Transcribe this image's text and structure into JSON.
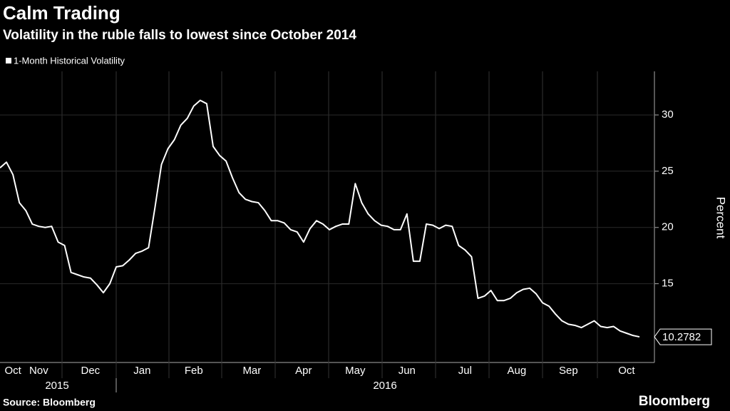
{
  "chart_data": {
    "type": "line",
    "title": "Calm Trading",
    "subtitle": "Volatility in the ruble falls to lowest since October 2014",
    "y_label": "Percent",
    "source": "Source: Bloomberg",
    "brand": "Bloomberg",
    "year_labels": [
      "2015",
      "2016"
    ],
    "categories": [
      null,
      null,
      "Oct",
      null,
      null,
      null,
      "Nov",
      null,
      null,
      null,
      null,
      null,
      null,
      null,
      "Dec",
      null,
      null,
      null,
      null,
      null,
      null,
      null,
      "Jan",
      null,
      null,
      null,
      null,
      null,
      null,
      null,
      "Feb",
      null,
      null,
      null,
      null,
      null,
      null,
      null,
      null,
      "Mar",
      null,
      null,
      null,
      null,
      null,
      null,
      null,
      "Apr",
      null,
      null,
      null,
      null,
      null,
      null,
      null,
      "May",
      null,
      null,
      null,
      null,
      null,
      null,
      null,
      "Jun",
      null,
      null,
      null,
      null,
      null,
      null,
      null,
      null,
      "Jul",
      null,
      null,
      null,
      null,
      null,
      null,
      null,
      "Aug",
      null,
      null,
      null,
      null,
      null,
      null,
      null,
      "Sep",
      null,
      null,
      null,
      null,
      null,
      null,
      null,
      null,
      "Oct",
      null,
      null
    ],
    "series": [
      {
        "name": "1-Month Historical Volatility",
        "color": "#ffffff",
        "values": [
          25.3,
          25.8,
          24.7,
          22.2,
          21.5,
          20.3,
          20.1,
          20.0,
          20.1,
          18.7,
          18.4,
          16.0,
          15.8,
          15.6,
          15.5,
          14.9,
          14.2,
          15.0,
          16.5,
          16.6,
          17.1,
          17.7,
          17.9,
          18.2,
          21.8,
          25.6,
          27.0,
          27.8,
          29.1,
          29.7,
          30.8,
          31.3,
          31.0,
          27.2,
          26.4,
          25.9,
          24.4,
          23.1,
          22.5,
          22.3,
          22.2,
          21.5,
          20.6,
          20.6,
          20.4,
          19.8,
          19.6,
          18.7,
          19.9,
          20.6,
          20.3,
          19.8,
          20.1,
          20.3,
          20.3,
          23.9,
          22.2,
          21.2,
          20.6,
          20.2,
          20.1,
          19.8,
          19.8,
          21.2,
          17.0,
          17.0,
          20.3,
          20.2,
          19.9,
          20.2,
          20.1,
          18.4,
          18.0,
          17.4,
          13.7,
          13.9,
          14.4,
          13.5,
          13.5,
          13.7,
          14.2,
          14.5,
          14.6,
          14.1,
          13.3,
          13.0,
          12.3,
          11.7,
          11.4,
          11.3,
          11.1,
          11.4,
          11.7,
          11.2,
          11.1,
          11.2,
          10.8,
          10.6,
          10.4,
          10.2782
        ]
      }
    ],
    "ylim": [
      8,
      34
    ],
    "yticks": [
      15,
      20,
      25,
      30
    ],
    "grid": true
  }
}
